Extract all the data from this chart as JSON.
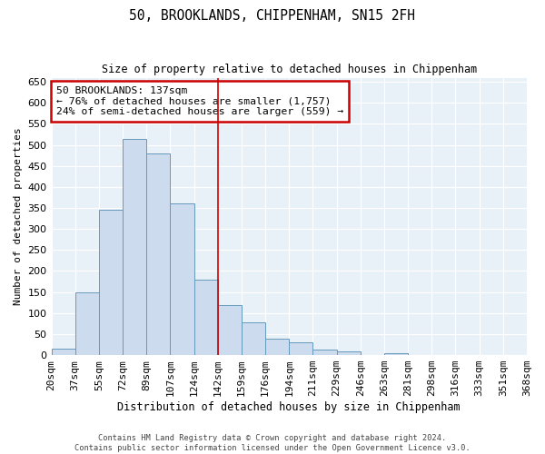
{
  "title": "50, BROOKLANDS, CHIPPENHAM, SN15 2FH",
  "subtitle": "Size of property relative to detached houses in Chippenham",
  "xlabel": "Distribution of detached houses by size in Chippenham",
  "ylabel": "Number of detached properties",
  "bin_labels": [
    "20sqm",
    "37sqm",
    "55sqm",
    "72sqm",
    "89sqm",
    "107sqm",
    "124sqm",
    "142sqm",
    "159sqm",
    "176sqm",
    "194sqm",
    "211sqm",
    "229sqm",
    "246sqm",
    "263sqm",
    "281sqm",
    "298sqm",
    "316sqm",
    "333sqm",
    "351sqm",
    "368sqm"
  ],
  "bin_values": [
    15,
    150,
    345,
    515,
    480,
    360,
    180,
    120,
    78,
    40,
    30,
    13,
    8,
    0,
    5,
    0,
    0,
    0,
    0,
    0
  ],
  "bar_color": "#ccdcee",
  "bar_edge_color": "#6699bb",
  "property_line_x": 7,
  "annotation_title": "50 BROOKLANDS: 137sqm",
  "annotation_line1": "← 76% of detached houses are smaller (1,757)",
  "annotation_line2": "24% of semi-detached houses are larger (559) →",
  "annotation_box_color": "#cc0000",
  "vline_color": "#cc0000",
  "ylim": [
    0,
    660
  ],
  "yticks": [
    0,
    50,
    100,
    150,
    200,
    250,
    300,
    350,
    400,
    450,
    500,
    550,
    600,
    650
  ],
  "grid_color": "#d0dde8",
  "footer1": "Contains HM Land Registry data © Crown copyright and database right 2024.",
  "footer2": "Contains public sector information licensed under the Open Government Licence v3.0.",
  "bg_color": "#e8f0f8"
}
